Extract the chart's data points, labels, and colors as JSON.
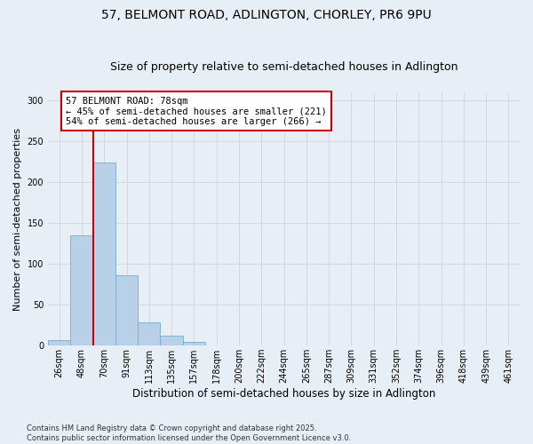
{
  "title": "57, BELMONT ROAD, ADLINGTON, CHORLEY, PR6 9PU",
  "subtitle": "Size of property relative to semi-detached houses in Adlington",
  "xlabel": "Distribution of semi-detached houses by size in Adlington",
  "ylabel": "Number of semi-detached properties",
  "categories": [
    "26sqm",
    "48sqm",
    "70sqm",
    "91sqm",
    "113sqm",
    "135sqm",
    "157sqm",
    "178sqm",
    "200sqm",
    "222sqm",
    "244sqm",
    "265sqm",
    "287sqm",
    "309sqm",
    "331sqm",
    "352sqm",
    "374sqm",
    "396sqm",
    "418sqm",
    "439sqm",
    "461sqm"
  ],
  "values": [
    7,
    135,
    224,
    86,
    28,
    12,
    5,
    0,
    0,
    0,
    0,
    0,
    0,
    0,
    0,
    0,
    0,
    0,
    0,
    0,
    0
  ],
  "bar_color": "#b8d0e8",
  "bar_edge_color": "#7aaac8",
  "vline_bar_index": 2,
  "vline_color": "#cc0000",
  "annotation_text": "57 BELMONT ROAD: 78sqm\n← 45% of semi-detached houses are smaller (221)\n54% of semi-detached houses are larger (266) →",
  "annotation_box_color": "#ffffff",
  "annotation_box_edge_color": "#cc0000",
  "ylim": [
    0,
    310
  ],
  "yticks": [
    0,
    50,
    100,
    150,
    200,
    250,
    300
  ],
  "background_color": "#e8eef5",
  "grid_color": "#d0d8e4",
  "footer": "Contains HM Land Registry data © Crown copyright and database right 2025.\nContains public sector information licensed under the Open Government Licence v3.0.",
  "title_fontsize": 10,
  "subtitle_fontsize": 9,
  "xlabel_fontsize": 8.5,
  "ylabel_fontsize": 8,
  "tick_fontsize": 7,
  "annotation_fontsize": 7.5,
  "footer_fontsize": 6
}
